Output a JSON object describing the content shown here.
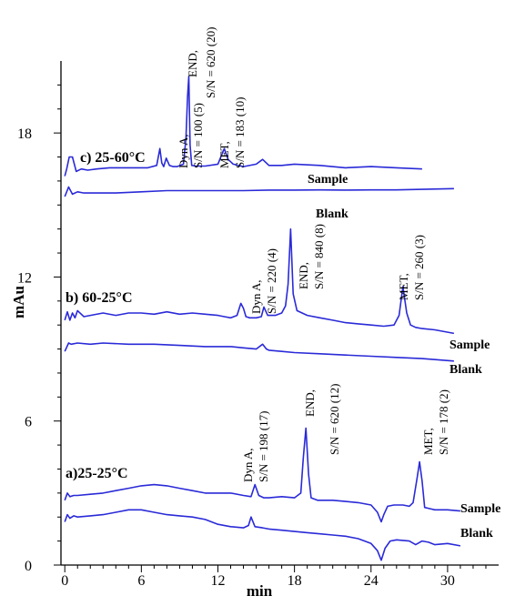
{
  "chart_data": {
    "type": "line",
    "xlabel": "min",
    "ylabel": "mAu",
    "xlim": [
      -0.3,
      34
    ],
    "ylim": [
      0,
      21
    ],
    "xticks": [
      0,
      6,
      12,
      18,
      24,
      30
    ],
    "yticks": [
      0,
      6,
      12,
      18
    ],
    "line_color": "#2a2ad8",
    "panels": [
      {
        "label": "c) 25-60°C",
        "sample": {
          "name": "Sample",
          "x": [
            0,
            0.15,
            0.35,
            0.6,
            0.9,
            1.3,
            1.8,
            2.5,
            3.5,
            5,
            6.5,
            7.2,
            7.45,
            7.6,
            7.75,
            7.95,
            8.2,
            8.5,
            8.8,
            9.3,
            9.5,
            9.62,
            9.72,
            9.82,
            9.95,
            10.3,
            11,
            12,
            12.3,
            12.5,
            12.8,
            13.2,
            14,
            15,
            15.5,
            16,
            17,
            18,
            20,
            22,
            24,
            26,
            28
          ],
          "y": [
            16.2,
            16.5,
            17.0,
            17.0,
            16.4,
            16.5,
            16.45,
            16.5,
            16.55,
            16.55,
            16.55,
            16.65,
            17.35,
            16.75,
            16.6,
            16.95,
            16.65,
            16.6,
            16.6,
            16.7,
            17.8,
            19.5,
            20.35,
            17.5,
            16.65,
            16.62,
            16.62,
            16.7,
            17.1,
            17.35,
            16.9,
            16.7,
            16.6,
            16.7,
            16.9,
            16.65,
            16.65,
            16.7,
            16.65,
            16.55,
            16.6,
            16.55,
            16.5
          ]
        },
        "blank": {
          "name": "Blank",
          "x": [
            0,
            0.3,
            0.6,
            1.0,
            1.5,
            2.5,
            4,
            6,
            8,
            10,
            12,
            14,
            16,
            18,
            20,
            22,
            24,
            26,
            28,
            30.5
          ],
          "y": [
            15.35,
            15.75,
            15.45,
            15.55,
            15.5,
            15.5,
            15.5,
            15.55,
            15.6,
            15.6,
            15.6,
            15.6,
            15.62,
            15.62,
            15.63,
            15.62,
            15.63,
            15.63,
            15.65,
            15.68
          ]
        },
        "peaks": [
          {
            "name": "Dyn A,",
            "sn": "S/N = 100 (5)"
          },
          {
            "name": "END,",
            "sn": "S/N = 620 (20)"
          },
          {
            "name": "MET,",
            "sn": "S/N = 183 (10)"
          }
        ]
      },
      {
        "label": "b) 60-25°C",
        "sample": {
          "name": "Sample",
          "x": [
            0,
            0.2,
            0.4,
            0.6,
            0.8,
            1.0,
            1.5,
            2,
            3,
            4,
            5,
            6,
            7,
            8,
            9,
            10,
            11,
            12,
            12.5,
            13,
            13.5,
            13.8,
            14,
            14.2,
            14.5,
            15,
            15.4,
            15.6,
            15.9,
            16.5,
            17,
            17.3,
            17.5,
            17.7,
            17.9,
            18.2,
            19,
            20,
            21,
            22,
            23,
            24,
            25,
            25.8,
            26.2,
            26.5,
            26.8,
            27.1,
            27.5,
            28,
            29,
            30.5
          ],
          "y": [
            10.2,
            10.55,
            10.2,
            10.5,
            10.3,
            10.6,
            10.35,
            10.4,
            10.5,
            10.4,
            10.5,
            10.5,
            10.45,
            10.55,
            10.45,
            10.5,
            10.45,
            10.4,
            10.35,
            10.3,
            10.4,
            10.9,
            10.7,
            10.35,
            10.3,
            10.3,
            10.35,
            10.75,
            10.4,
            10.4,
            10.5,
            10.8,
            11.7,
            14.0,
            11.3,
            10.6,
            10.4,
            10.3,
            10.2,
            10.1,
            10.05,
            10.0,
            9.95,
            10.0,
            10.4,
            11.6,
            10.5,
            10.0,
            9.9,
            9.85,
            9.8,
            9.65
          ]
        },
        "blank": {
          "name": "Blank",
          "x": [
            0,
            0.3,
            0.5,
            1,
            2,
            3,
            5,
            7,
            9,
            11,
            13,
            14,
            15,
            15.5,
            15.8,
            16,
            17,
            18,
            20,
            22,
            24,
            26,
            28,
            30.5
          ],
          "y": [
            8.9,
            9.25,
            9.2,
            9.25,
            9.2,
            9.25,
            9.2,
            9.2,
            9.15,
            9.1,
            9.1,
            9.05,
            9.0,
            9.2,
            9.0,
            8.95,
            8.9,
            8.85,
            8.8,
            8.75,
            8.7,
            8.65,
            8.6,
            8.5
          ]
        },
        "peaks": [
          {
            "name": "Dyn A,",
            "sn": "S/N = 220 (4)"
          },
          {
            "name": "END,",
            "sn": "S/N = 840 (8)"
          },
          {
            "name": "MET,",
            "sn": "S/N = 260 (3)"
          }
        ]
      },
      {
        "label": "a)25-25°C",
        "sample": {
          "name": "Sample",
          "x": [
            0,
            0.2,
            0.4,
            0.7,
            1,
            2,
            3,
            4,
            5,
            6,
            7,
            8,
            9,
            10,
            11,
            12,
            13,
            14,
            14.6,
            14.9,
            15.2,
            15.6,
            16,
            17,
            18,
            18.5,
            18.7,
            18.9,
            19.1,
            19.3,
            19.8,
            21,
            22,
            23,
            24,
            24.5,
            24.8,
            25.0,
            25.3,
            25.8,
            26.5,
            27,
            27.3,
            27.6,
            27.8,
            28.0,
            28.2,
            28.6,
            29,
            30,
            31
          ],
          "y": [
            2.7,
            3.0,
            2.85,
            2.9,
            2.9,
            2.95,
            3.0,
            3.1,
            3.2,
            3.3,
            3.35,
            3.3,
            3.2,
            3.1,
            3.0,
            3.0,
            3.0,
            2.9,
            2.85,
            3.35,
            2.9,
            2.8,
            2.8,
            2.85,
            2.8,
            3.0,
            4.5,
            5.7,
            3.8,
            2.8,
            2.7,
            2.7,
            2.65,
            2.6,
            2.5,
            2.2,
            1.8,
            2.1,
            2.45,
            2.5,
            2.5,
            2.45,
            2.6,
            3.6,
            4.3,
            3.5,
            2.4,
            2.35,
            2.3,
            2.3,
            2.25
          ]
        },
        "blank": {
          "name": "Blank",
          "x": [
            0,
            0.2,
            0.4,
            0.7,
            1,
            2,
            3,
            4,
            5,
            6,
            7,
            8,
            9,
            10,
            11,
            12,
            13,
            14,
            14.4,
            14.6,
            14.9,
            15.5,
            16,
            17,
            18,
            19,
            20,
            21,
            22,
            23,
            24,
            24.5,
            24.8,
            25.1,
            25.5,
            26,
            27,
            27.5,
            28,
            28.5,
            29,
            30,
            31
          ],
          "y": [
            1.8,
            2.1,
            1.95,
            2.05,
            2.0,
            2.05,
            2.1,
            2.2,
            2.3,
            2.3,
            2.2,
            2.1,
            2.05,
            2.0,
            1.9,
            1.7,
            1.6,
            1.55,
            1.65,
            2.0,
            1.6,
            1.55,
            1.5,
            1.45,
            1.4,
            1.35,
            1.3,
            1.25,
            1.2,
            1.1,
            0.9,
            0.6,
            0.2,
            0.7,
            1.0,
            1.05,
            1.0,
            0.85,
            1.0,
            0.95,
            0.85,
            0.9,
            0.8
          ]
        },
        "peaks": [
          {
            "name": "Dyn A,",
            "sn": "S/N = 198 (17)"
          },
          {
            "name": "END,",
            "sn": "S/N = 620 (12)"
          },
          {
            "name": "MET,",
            "sn": "S/N = 178 (2)"
          }
        ]
      }
    ]
  }
}
